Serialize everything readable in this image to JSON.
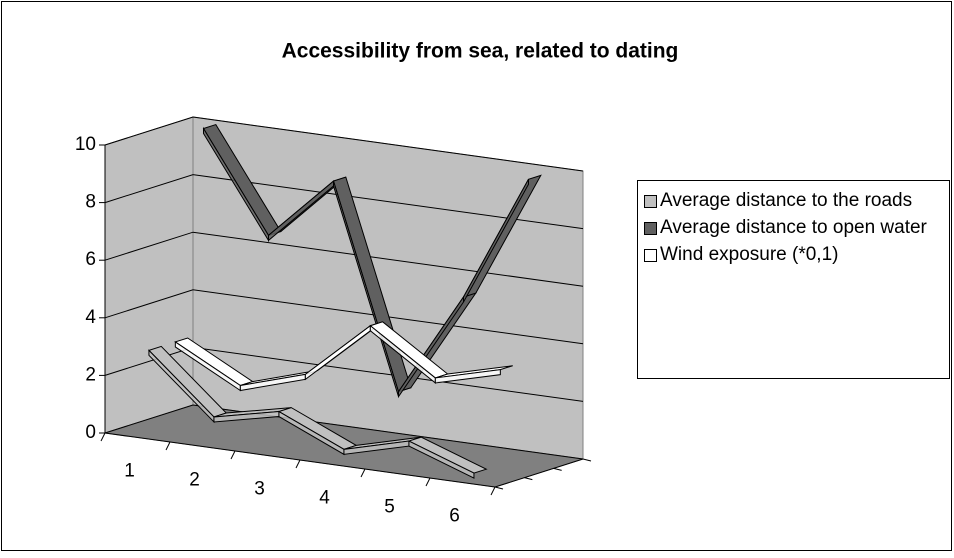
{
  "chart_data": {
    "type": "line3d",
    "title": "Accessibility from sea, related to dating",
    "categories": [
      "1",
      "2",
      "3",
      "4",
      "5",
      "6"
    ],
    "ylim": [
      0,
      10
    ],
    "yticks": [
      0,
      2,
      4,
      6,
      8,
      10
    ],
    "grid": true,
    "series": [
      {
        "name": "Average distance to the roads",
        "color": "#c0c0c0",
        "values": [
          2.9,
          0.9,
          1.4,
          0.4,
          1.0,
          0.2
        ]
      },
      {
        "name": "Average distance to open water",
        "color": "#606060",
        "values": [
          10,
          6.6,
          8.8,
          1.8,
          5.4,
          9.8
        ]
      },
      {
        "name": "Wind exposure (*0,1)",
        "color": "#ffffff",
        "values": [
          2.9,
          1.7,
          2.4,
          4.4,
          2.9,
          3.5
        ]
      }
    ]
  }
}
